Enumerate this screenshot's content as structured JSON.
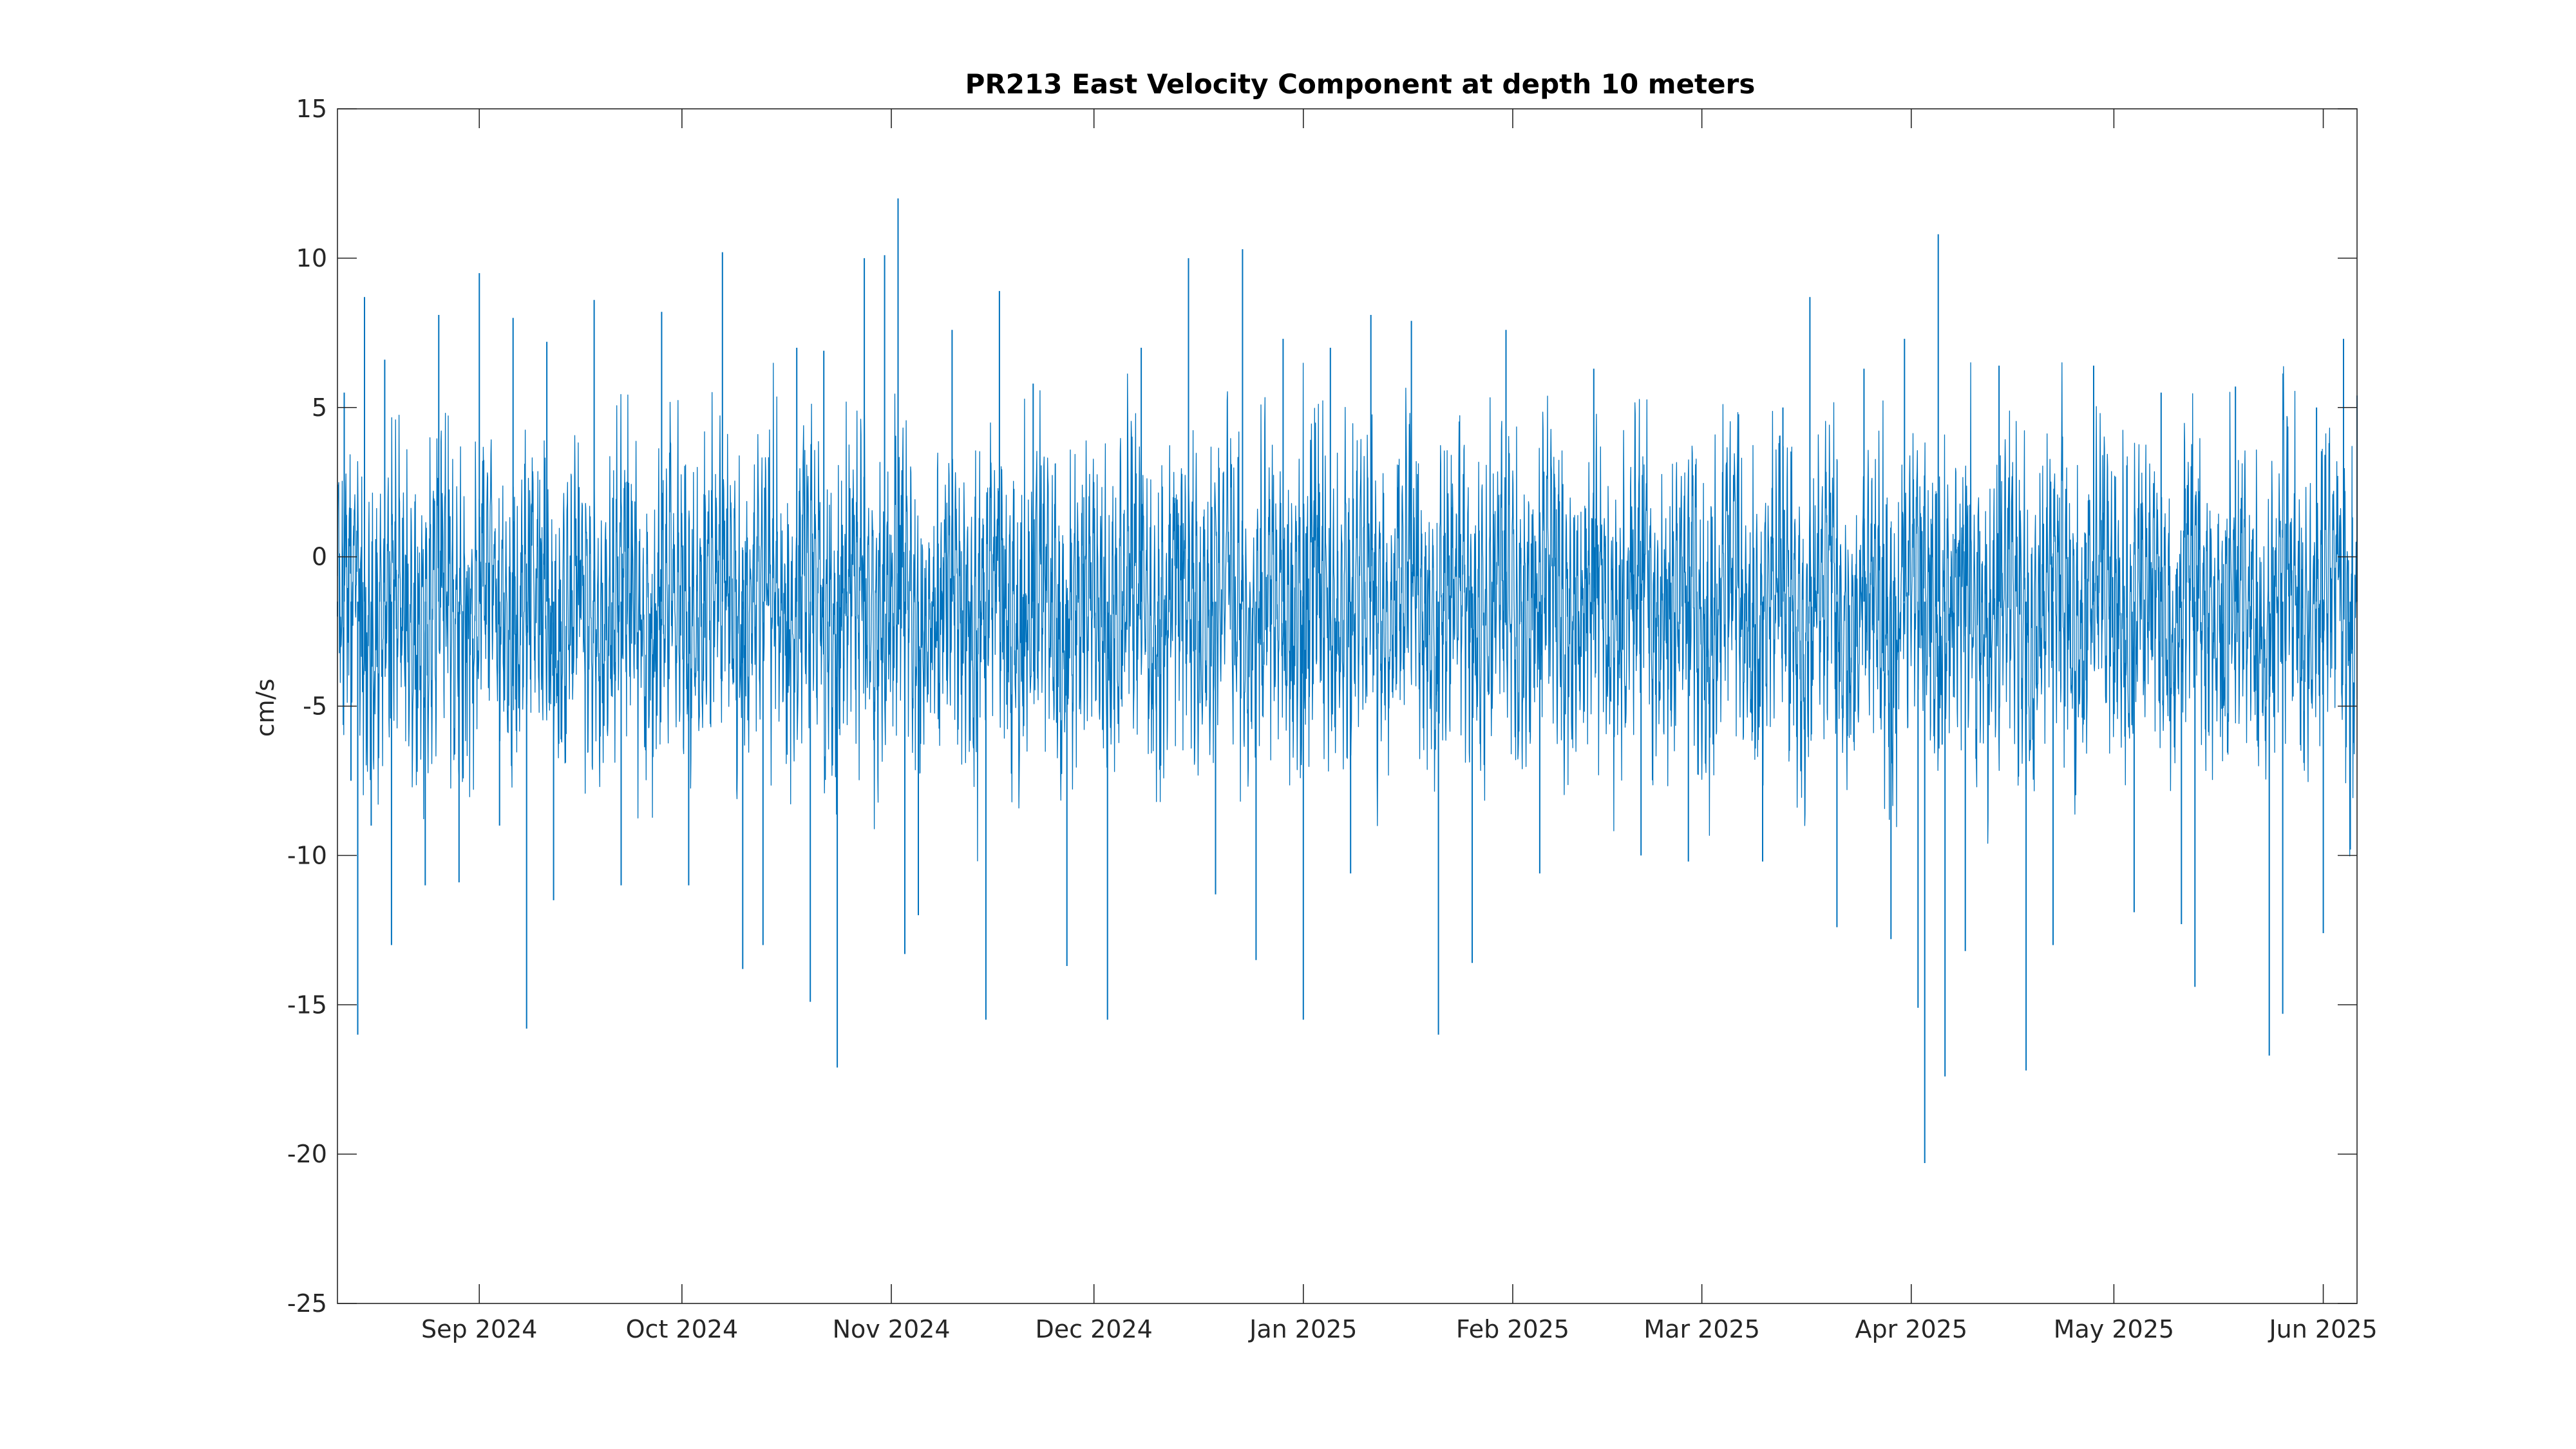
{
  "chart_data": {
    "type": "line",
    "title": "PR213 East Velocity Component at depth 10 meters",
    "xlabel": "",
    "ylabel": "cm/s",
    "xlim": [
      "2024-08-11",
      "2025-06-06"
    ],
    "ylim": [
      -25,
      15
    ],
    "grid": false,
    "x_ticks": [
      {
        "label": "Sep 2024",
        "date": "2024-09-01"
      },
      {
        "label": "Oct 2024",
        "date": "2024-10-01"
      },
      {
        "label": "Nov 2024",
        "date": "2024-11-01"
      },
      {
        "label": "Dec 2024",
        "date": "2024-12-01"
      },
      {
        "label": "Jan 2025",
        "date": "2025-01-01"
      },
      {
        "label": "Feb 2025",
        "date": "2025-02-01"
      },
      {
        "label": "Mar 2025",
        "date": "2025-03-01"
      },
      {
        "label": "Apr 2025",
        "date": "2025-04-01"
      },
      {
        "label": "May 2025",
        "date": "2025-05-01"
      },
      {
        "label": "Jun 2025",
        "date": "2025-06-01"
      }
    ],
    "y_ticks": [
      15,
      10,
      5,
      0,
      -5,
      -10,
      -15,
      -20,
      -25
    ],
    "series": [
      {
        "color": "#0072BD",
        "points": [
          [
            "2024-08-11",
            -2.0
          ],
          [
            "2024-08-12",
            5.5
          ],
          [
            "2024-08-13",
            -7.5
          ],
          [
            "2024-08-14",
            -16.0
          ],
          [
            "2024-08-15",
            8.7
          ],
          [
            "2024-08-16",
            -9.0
          ],
          [
            "2024-08-18",
            6.6
          ],
          [
            "2024-08-19",
            -13.0
          ],
          [
            "2024-08-24",
            -11.0
          ],
          [
            "2024-08-26",
            8.1
          ],
          [
            "2024-08-29",
            -10.9
          ],
          [
            "2024-09-01",
            9.5
          ],
          [
            "2024-09-04",
            -9.0
          ],
          [
            "2024-09-06",
            8.0
          ],
          [
            "2024-09-08",
            -15.8
          ],
          [
            "2024-09-11",
            7.2
          ],
          [
            "2024-09-12",
            -11.5
          ],
          [
            "2024-09-18",
            8.6
          ],
          [
            "2024-09-22",
            -11.0
          ],
          [
            "2024-09-28",
            8.2
          ],
          [
            "2024-10-02",
            -11.0
          ],
          [
            "2024-10-07",
            10.2
          ],
          [
            "2024-10-10",
            -13.8
          ],
          [
            "2024-10-13",
            -13.0
          ],
          [
            "2024-10-18",
            7.0
          ],
          [
            "2024-10-20",
            -14.9
          ],
          [
            "2024-10-22",
            6.9
          ],
          [
            "2024-10-24",
            -17.1
          ],
          [
            "2024-10-28",
            10.0
          ],
          [
            "2024-10-31",
            10.1
          ],
          [
            "2024-11-02",
            12.0
          ],
          [
            "2024-11-03",
            -13.3
          ],
          [
            "2024-11-05",
            -12.0
          ],
          [
            "2024-11-10",
            7.6
          ],
          [
            "2024-11-15",
            -15.5
          ],
          [
            "2024-11-17",
            8.9
          ],
          [
            "2024-11-22",
            5.8
          ],
          [
            "2024-11-27",
            -13.7
          ],
          [
            "2024-12-03",
            -15.5
          ],
          [
            "2024-12-08",
            7.0
          ],
          [
            "2024-12-15",
            10.0
          ],
          [
            "2024-12-19",
            -11.3
          ],
          [
            "2024-12-23",
            10.3
          ],
          [
            "2024-12-25",
            -13.5
          ],
          [
            "2024-12-29",
            7.3
          ],
          [
            "2025-01-01",
            -15.5
          ],
          [
            "2025-01-05",
            7.0
          ],
          [
            "2025-01-08",
            -10.6
          ],
          [
            "2025-01-11",
            8.1
          ],
          [
            "2025-01-17",
            7.9
          ],
          [
            "2025-01-21",
            -16.0
          ],
          [
            "2025-01-26",
            -13.6
          ],
          [
            "2025-01-31",
            7.6
          ],
          [
            "2025-02-05",
            -10.6
          ],
          [
            "2025-02-13",
            6.3
          ],
          [
            "2025-02-20",
            -10.0
          ],
          [
            "2025-02-27",
            -10.2
          ],
          [
            "2025-03-10",
            -10.2
          ],
          [
            "2025-03-13",
            5.0
          ],
          [
            "2025-03-17",
            8.7
          ],
          [
            "2025-03-21",
            -12.4
          ],
          [
            "2025-03-25",
            6.3
          ],
          [
            "2025-03-29",
            -12.8
          ],
          [
            "2025-03-31",
            7.3
          ],
          [
            "2025-04-02",
            -15.1
          ],
          [
            "2025-04-03",
            -20.3
          ],
          [
            "2025-04-05",
            10.8
          ],
          [
            "2025-04-06",
            -17.4
          ],
          [
            "2025-04-09",
            -13.2
          ],
          [
            "2025-04-14",
            6.4
          ],
          [
            "2025-04-18",
            -17.2
          ],
          [
            "2025-04-22",
            -13.0
          ],
          [
            "2025-04-28",
            6.4
          ],
          [
            "2025-05-04",
            -11.9
          ],
          [
            "2025-05-08",
            5.5
          ],
          [
            "2025-05-11",
            -12.3
          ],
          [
            "2025-05-13",
            -14.4
          ],
          [
            "2025-05-19",
            5.7
          ],
          [
            "2025-05-24",
            -16.7
          ],
          [
            "2025-05-26",
            -15.3
          ],
          [
            "2025-05-31",
            5.0
          ],
          [
            "2025-06-01",
            -12.6
          ],
          [
            "2025-06-04",
            7.3
          ],
          [
            "2025-06-05",
            -9.8
          ],
          [
            "2025-06-06",
            5.4
          ]
        ]
      }
    ]
  }
}
